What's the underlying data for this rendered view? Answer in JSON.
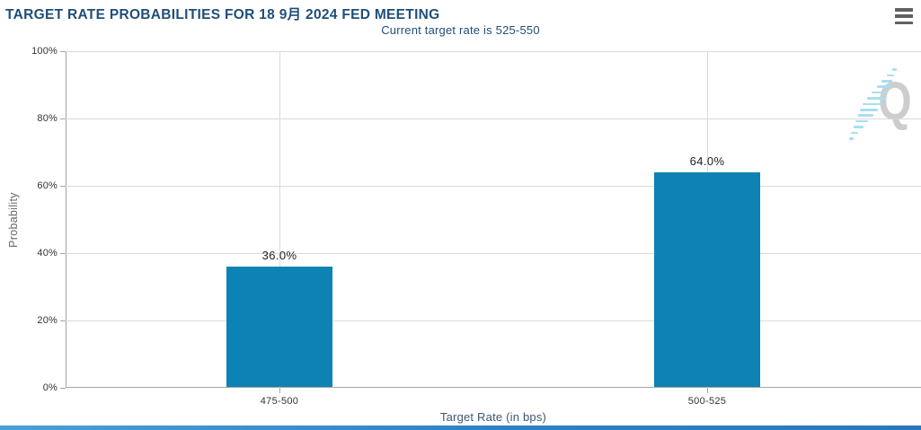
{
  "chart": {
    "title": "TARGET RATE PROBABILITIES FOR 18 9月 2024 FED MEETING",
    "subtitle": "Current target rate is 525-550",
    "context_menu_icon": "hamburger-menu-icon",
    "watermark_icon": "quikstrike-q-logo"
  },
  "chart_data": {
    "type": "bar",
    "title": "TARGET RATE PROBABILITIES FOR 18 9月 2024 FED MEETING",
    "subtitle": "Current target rate is 525-550",
    "categories": [
      "475-500",
      "500-525"
    ],
    "values": [
      36.0,
      64.0
    ],
    "data_labels": [
      "36.0%",
      "64.0%"
    ],
    "xlabel": "Target Rate (in bps)",
    "ylabel": "Probability",
    "ylim": [
      0,
      100
    ],
    "yticks": [
      0,
      20,
      40,
      60,
      80,
      100
    ],
    "ytick_labels": [
      "0%",
      "20%",
      "40%",
      "60%",
      "80%",
      "100%"
    ],
    "grid": "horizontal gridlines every 20%, vertical gridline at each category center",
    "legend": "none"
  },
  "colors": {
    "bar": "#0d82b4",
    "title_text": "#1f4e79",
    "subtitle_text": "#1f4e79",
    "gridline": "#d9d9d9",
    "axis_line": "#a5a5a5",
    "tick_label": "#333333",
    "data_label": "#222222",
    "y_axis_title": "#666666",
    "x_axis_title": "#3e5770",
    "menu_icon": "#616161",
    "watermark_gray": "#cdcdcd",
    "watermark_blue": "#a9def2",
    "bottom_edge_bar": "#2f80c3"
  }
}
